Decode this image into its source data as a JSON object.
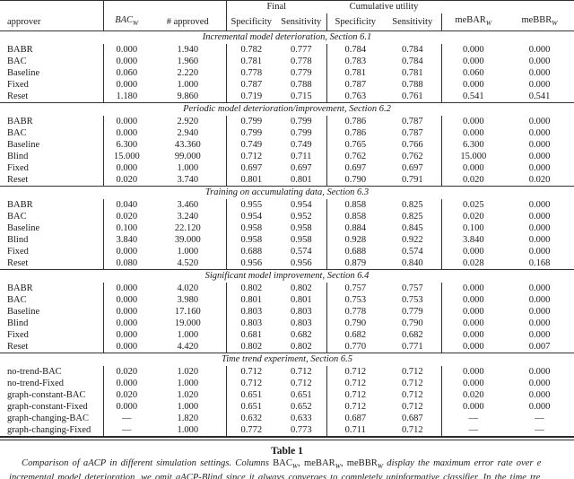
{
  "header": {
    "approver": "approver",
    "bac_base": "BAC",
    "sub_w": "W",
    "approved": "# approved",
    "final_group": "Final",
    "cumulative_group": "Cumulative utility",
    "specificity": "Specificity",
    "sensitivity": "Sensitivity",
    "mebar_base": "meBAR",
    "mebbr_base": "meBBR"
  },
  "table": {
    "sections": [
      {
        "title": "Incremental model deterioration, Section 6.1",
        "rows": [
          {
            "approver": "BABR",
            "values": [
              "0.000",
              "1.940",
              "0.782",
              "0.777",
              "0.784",
              "0.784",
              "0.000",
              "0.000"
            ]
          },
          {
            "approver": "BAC",
            "values": [
              "0.000",
              "1.960",
              "0.781",
              "0.778",
              "0.783",
              "0.784",
              "0.000",
              "0.000"
            ]
          },
          {
            "approver": "Baseline",
            "values": [
              "0.060",
              "2.220",
              "0.778",
              "0.779",
              "0.781",
              "0.781",
              "0.060",
              "0.000"
            ]
          },
          {
            "approver": "Fixed",
            "values": [
              "0.000",
              "1.000",
              "0.787",
              "0.788",
              "0.787",
              "0.788",
              "0.000",
              "0.000"
            ]
          },
          {
            "approver": "Reset",
            "values": [
              "1.180",
              "9.860",
              "0.719",
              "0.715",
              "0.763",
              "0.761",
              "0.541",
              "0.541"
            ]
          }
        ]
      },
      {
        "title": "Periodic model deterioration/improvement, Section 6.2",
        "rows": [
          {
            "approver": "BABR",
            "values": [
              "0.000",
              "2.920",
              "0.799",
              "0.799",
              "0.786",
              "0.787",
              "0.000",
              "0.000"
            ]
          },
          {
            "approver": "BAC",
            "values": [
              "0.000",
              "2.940",
              "0.799",
              "0.799",
              "0.786",
              "0.787",
              "0.000",
              "0.000"
            ]
          },
          {
            "approver": "Baseline",
            "values": [
              "6.300",
              "43.360",
              "0.749",
              "0.749",
              "0.765",
              "0.766",
              "6.300",
              "0.000"
            ]
          },
          {
            "approver": "Blind",
            "values": [
              "15.000",
              "99.000",
              "0.712",
              "0.711",
              "0.762",
              "0.762",
              "15.000",
              "0.000"
            ]
          },
          {
            "approver": "Fixed",
            "values": [
              "0.000",
              "1.000",
              "0.697",
              "0.697",
              "0.697",
              "0.697",
              "0.000",
              "0.000"
            ]
          },
          {
            "approver": "Reset",
            "values": [
              "0.020",
              "3.740",
              "0.801",
              "0.801",
              "0.790",
              "0.791",
              "0.020",
              "0.020"
            ]
          }
        ]
      },
      {
        "title": "Training on accumulating data, Section 6.3",
        "rows": [
          {
            "approver": "BABR",
            "values": [
              "0.040",
              "3.460",
              "0.955",
              "0.954",
              "0.858",
              "0.825",
              "0.025",
              "0.000"
            ]
          },
          {
            "approver": "BAC",
            "values": [
              "0.020",
              "3.240",
              "0.954",
              "0.952",
              "0.858",
              "0.825",
              "0.020",
              "0.000"
            ]
          },
          {
            "approver": "Baseline",
            "values": [
              "0.100",
              "22.120",
              "0.958",
              "0.958",
              "0.884",
              "0.845",
              "0.100",
              "0.000"
            ]
          },
          {
            "approver": "Blind",
            "values": [
              "3.840",
              "39.000",
              "0.958",
              "0.958",
              "0.928",
              "0.922",
              "3.840",
              "0.000"
            ]
          },
          {
            "approver": "Fixed",
            "values": [
              "0.000",
              "1.000",
              "0.688",
              "0.574",
              "0.688",
              "0.574",
              "0.000",
              "0.000"
            ]
          },
          {
            "approver": "Reset",
            "values": [
              "0.080",
              "4.520",
              "0.956",
              "0.956",
              "0.879",
              "0.840",
              "0.028",
              "0.168"
            ]
          }
        ]
      },
      {
        "title": "Significant model improvement, Section 6.4",
        "rows": [
          {
            "approver": "BABR",
            "values": [
              "0.000",
              "4.020",
              "0.802",
              "0.802",
              "0.757",
              "0.757",
              "0.000",
              "0.000"
            ]
          },
          {
            "approver": "BAC",
            "values": [
              "0.000",
              "3.980",
              "0.801",
              "0.801",
              "0.753",
              "0.753",
              "0.000",
              "0.000"
            ]
          },
          {
            "approver": "Baseline",
            "values": [
              "0.000",
              "17.160",
              "0.803",
              "0.803",
              "0.778",
              "0.779",
              "0.000",
              "0.000"
            ]
          },
          {
            "approver": "Blind",
            "values": [
              "0.000",
              "19.000",
              "0.803",
              "0.803",
              "0.790",
              "0.790",
              "0.000",
              "0.000"
            ]
          },
          {
            "approver": "Fixed",
            "values": [
              "0.000",
              "1.000",
              "0.681",
              "0.682",
              "0.682",
              "0.682",
              "0.000",
              "0.000"
            ]
          },
          {
            "approver": "Reset",
            "values": [
              "0.000",
              "4.420",
              "0.802",
              "0.802",
              "0.770",
              "0.771",
              "0.000",
              "0.007"
            ]
          }
        ]
      },
      {
        "title": "Time trend experiment, Section 6.5",
        "rows": [
          {
            "approver": "no-trend-BAC",
            "values": [
              "0.020",
              "1.020",
              "0.712",
              "0.712",
              "0.712",
              "0.712",
              "0.000",
              "0.000"
            ]
          },
          {
            "approver": "no-trend-Fixed",
            "values": [
              "0.000",
              "1.000",
              "0.712",
              "0.712",
              "0.712",
              "0.712",
              "0.000",
              "0.000"
            ]
          },
          {
            "approver": "graph-constant-BAC",
            "values": [
              "0.020",
              "1.020",
              "0.651",
              "0.651",
              "0.712",
              "0.712",
              "0.020",
              "0.000"
            ]
          },
          {
            "approver": "graph-constant-Fixed",
            "values": [
              "0.000",
              "1.000",
              "0.651",
              "0.652",
              "0.712",
              "0.712",
              "0.000",
              "0.000"
            ]
          },
          {
            "approver": "graph-changing-BAC",
            "values": [
              "—",
              "1.820",
              "0.632",
              "0.633",
              "0.687",
              "0.687",
              "—",
              "—"
            ]
          },
          {
            "approver": "graph-changing-Fixed",
            "values": [
              "—",
              "1.000",
              "0.772",
              "0.773",
              "0.711",
              "0.712",
              "—",
              "—"
            ]
          }
        ]
      }
    ]
  },
  "caption": {
    "title": "Table 1",
    "line1": {
      "pre": "Comparison of aACP in different simulation settings. Columns ",
      "bac": "BAC",
      "mebar": "meBAR",
      "mebbr": "meBBR",
      "sub": "W",
      "sep1": ", ",
      "sep2": ", ",
      "post": " display the maximum error rate over e"
    },
    "line2": "incremental model deterioration, we omit aACP-Blind since it always converges to completely uninformative classifier. In the time tre"
  }
}
